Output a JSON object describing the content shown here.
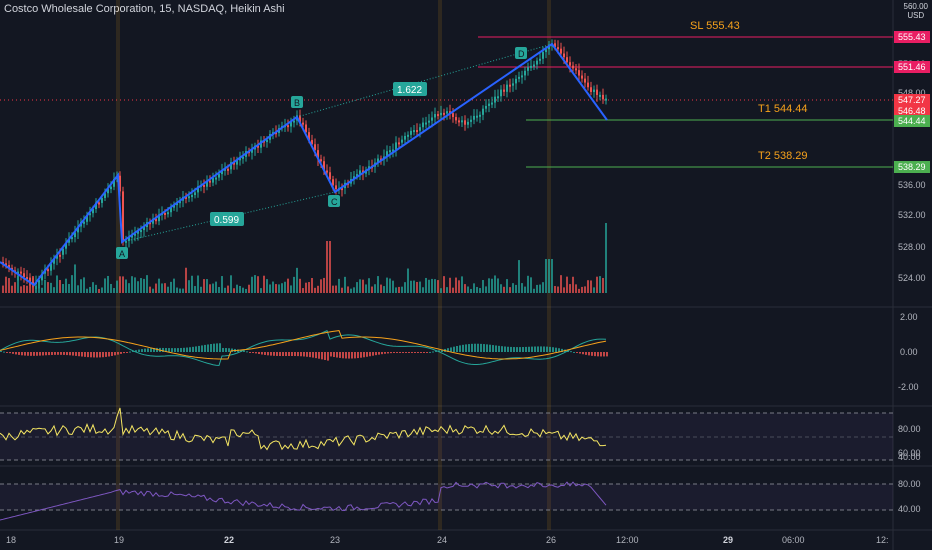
{
  "header": {
    "title": "Costco Wholesale Corporation, 15, NASDAQ, Heikin Ashi",
    "currency": "USD",
    "top_price": "560.00"
  },
  "price_axis": {
    "ticks": [
      "552.00",
      "548.00",
      "536.00",
      "532.00",
      "528.00",
      "524.00"
    ]
  },
  "price_tags": [
    {
      "label": "555.43",
      "color": "#e91e63"
    },
    {
      "label": "551.46",
      "color": "#e91e63"
    },
    {
      "label": "547.27",
      "color": "#f23645"
    },
    {
      "label": "546.48",
      "color": "#f23645"
    },
    {
      "label": "544.44",
      "color": "#4caf50"
    },
    {
      "label": "538.29",
      "color": "#4caf50"
    }
  ],
  "levels": {
    "sl": "SL 555.43",
    "t1": "T1 544.44",
    "t2": "T2 538.29"
  },
  "pattern": {
    "points": [
      "A",
      "B",
      "C",
      "D"
    ],
    "ratio_bc": "1.622",
    "ratio_ab": "0.599",
    "line_color": "#2962ff",
    "point_color": "#26a69a"
  },
  "macd_axis": [
    "2.00",
    "0.00",
    "-2.00"
  ],
  "rsi_axis": [
    "80.00",
    "60.00",
    "40.00"
  ],
  "stoch_axis": [
    "80.00",
    "40.00"
  ],
  "time_axis": [
    "18",
    "19",
    "22",
    "23",
    "24",
    "26",
    "12:00",
    "29",
    "06:00",
    "12:"
  ],
  "colors": {
    "up": "#26a69a",
    "down": "#ef5350",
    "rsi": "#f5e663",
    "stoch": "#7e57c2"
  }
}
